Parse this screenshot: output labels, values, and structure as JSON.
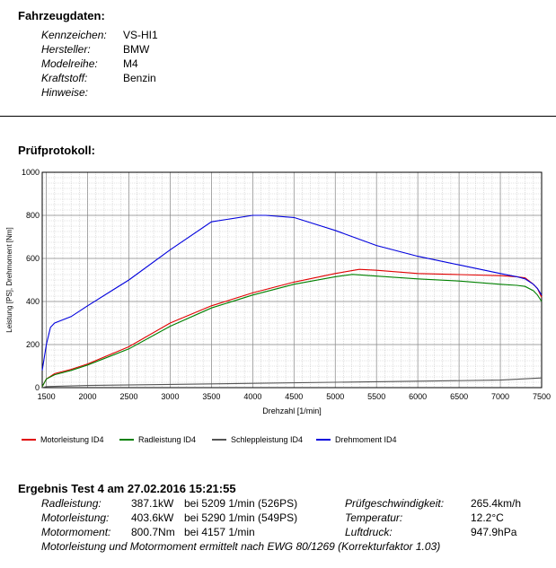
{
  "vehicle": {
    "heading": "Fahrzeugdaten:",
    "rows": [
      {
        "label": "Kennzeichen:",
        "value": "VS-HI1"
      },
      {
        "label": "Hersteller:",
        "value": "BMW"
      },
      {
        "label": "Modelreihe:",
        "value": "M4"
      },
      {
        "label": "Kraftstoff:",
        "value": "Benzin"
      },
      {
        "label": "Hinweise:",
        "value": ""
      }
    ]
  },
  "protocol_heading": "Prüfprotokoll:",
  "chart_data": {
    "type": "line",
    "xlabel": "Drehzahl [1/min]",
    "ylabel": "Leistung [PS], Drehmoment [Nm]",
    "xlim": [
      1450,
      7500
    ],
    "ylim": [
      0,
      1000
    ],
    "xticks": [
      1500,
      2000,
      2500,
      3000,
      3500,
      4000,
      4500,
      5000,
      5500,
      6000,
      6500,
      7000,
      7500
    ],
    "yticks": [
      0,
      200,
      400,
      600,
      800,
      1000
    ],
    "grid": true,
    "legend_position": "bottom",
    "series": [
      {
        "name": "Motorleistung ID4",
        "color": "#e00000",
        "x": [
          1450,
          1500,
          1600,
          1700,
          1800,
          2000,
          2500,
          3000,
          3500,
          4000,
          4500,
          5000,
          5290,
          5500,
          6000,
          6500,
          7000,
          7200,
          7300,
          7400,
          7450,
          7500
        ],
        "y": [
          5,
          40,
          65,
          75,
          85,
          110,
          190,
          300,
          380,
          440,
          490,
          530,
          549,
          545,
          530,
          525,
          520,
          515,
          510,
          480,
          460,
          420
        ]
      },
      {
        "name": "Radleistung ID4",
        "color": "#008000",
        "x": [
          1450,
          1500,
          1600,
          1700,
          1800,
          2000,
          2500,
          3000,
          3500,
          4000,
          4500,
          5000,
          5209,
          5500,
          6000,
          6500,
          7000,
          7200,
          7300,
          7400,
          7450,
          7500
        ],
        "y": [
          5,
          40,
          60,
          70,
          80,
          105,
          180,
          285,
          370,
          430,
          480,
          515,
          526,
          518,
          505,
          495,
          480,
          475,
          470,
          450,
          430,
          400
        ]
      },
      {
        "name": "Schleppleistung ID4",
        "color": "#555555",
        "x": [
          1450,
          1500,
          2000,
          3000,
          4000,
          5000,
          6000,
          7000,
          7500
        ],
        "y": [
          0,
          5,
          10,
          15,
          20,
          25,
          30,
          35,
          45
        ]
      },
      {
        "name": "Drehmoment ID4",
        "color": "#0000dd",
        "x": [
          1450,
          1500,
          1550,
          1600,
          1700,
          1800,
          2000,
          2500,
          3000,
          3500,
          4000,
          4157,
          4500,
          5000,
          5500,
          6000,
          6500,
          7000,
          7200,
          7300,
          7400,
          7450,
          7500
        ],
        "y": [
          80,
          200,
          280,
          300,
          315,
          330,
          380,
          500,
          640,
          770,
          800,
          800,
          790,
          730,
          660,
          610,
          570,
          530,
          515,
          505,
          480,
          460,
          430
        ]
      }
    ]
  },
  "result": {
    "heading": "Ergebnis Test 4 am 27.02.2016 15:21:55",
    "rows": [
      {
        "label": "Radleistung:",
        "value": "387.1kW",
        "at": "bei 5209 1/min (526PS)",
        "label2": "Prüfgeschwindigkeit:",
        "value2": "265.4km/h"
      },
      {
        "label": "Motorleistung:",
        "value": "403.6kW",
        "at": "bei 5290 1/min (549PS)",
        "label2": "Temperatur:",
        "value2": "12.2°C"
      },
      {
        "label": "Motormoment:",
        "value": "800.7Nm",
        "at": "bei 4157 1/min",
        "label2": "Luftdruck:",
        "value2": "947.9hPa"
      }
    ],
    "note": "Motorleistung und Motormoment ermittelt nach EWG 80/1269 (Korrekturfaktor 1.03)"
  }
}
